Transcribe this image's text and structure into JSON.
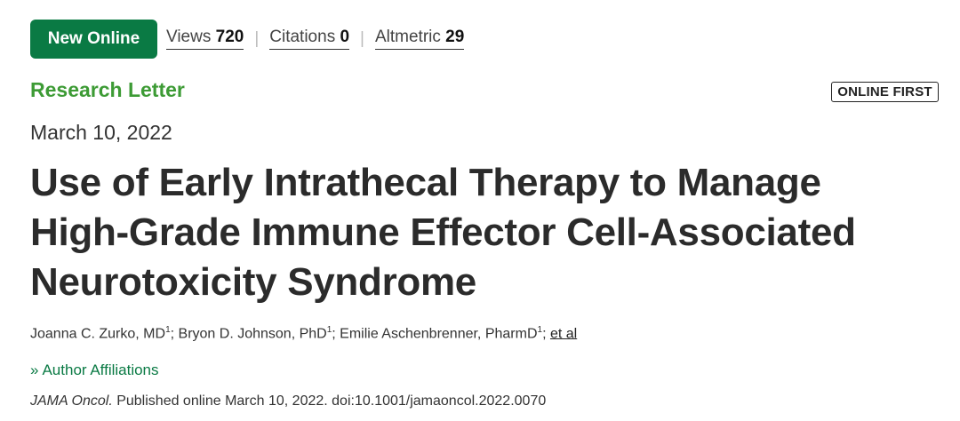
{
  "header": {
    "badge": "New Online",
    "metrics": [
      {
        "label": "Views",
        "value": "720"
      },
      {
        "label": "Citations",
        "value": "0"
      },
      {
        "label": "Altmetric",
        "value": "29"
      }
    ],
    "separator": "|"
  },
  "article": {
    "type": "Research Letter",
    "online_first": "ONLINE FIRST",
    "date": "March 10, 2022",
    "title": "Use of Early Intrathecal Therapy to Manage High-Grade Immune Effector Cell-Associated Neurotoxicity Syndrome",
    "authors": [
      {
        "name": "Joanna C. Zurko, MD",
        "sup": "1",
        "after": "; "
      },
      {
        "name": "Bryon D. Johnson, PhD",
        "sup": "1",
        "after": "; "
      },
      {
        "name": "Emilie Aschenbrenner, PharmD",
        "sup": "1",
        "after": "; "
      }
    ],
    "et_al": "et al",
    "affiliations_label": "Author Affiliations",
    "affiliations_icon": "double-chevron-right-icon",
    "citation_journal": "JAMA Oncol.",
    "citation_rest": " Published online March 10, 2022. doi:10.1001/jamaoncol.2022.0070"
  },
  "colors": {
    "badge_bg": "#0a7a44",
    "article_type": "#3d9b35",
    "link_green": "#0a7a44"
  }
}
